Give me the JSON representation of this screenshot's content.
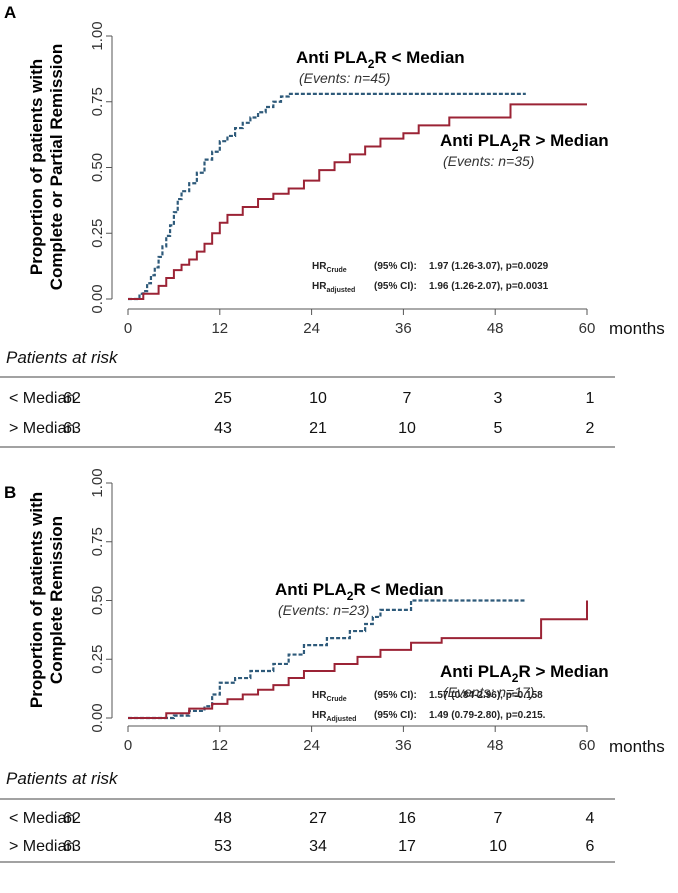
{
  "chart_data": [
    {
      "panel": "A",
      "type": "line",
      "ylabel_lines": [
        "Proportion of patients with",
        "Complete or Partial Remission"
      ],
      "xlabel": "months",
      "x_ticks": [
        "0",
        "12",
        "24",
        "36",
        "48",
        "60"
      ],
      "y_ticks": [
        "0.00",
        "0.25",
        "0.50",
        "0.75",
        "1.00"
      ],
      "xlim": [
        0,
        60
      ],
      "ylim": [
        0,
        1
      ],
      "series": [
        {
          "name_prefix": "Anti PLA",
          "name_sub": "2",
          "name_suffix": "R < Median",
          "events": "(Events: n=45)",
          "style": "dashed",
          "color": "#2e5a7a",
          "points": [
            [
              0,
              0
            ],
            [
              1.5,
              0.02
            ],
            [
              2,
              0.03
            ],
            [
              2.5,
              0.06
            ],
            [
              3,
              0.09
            ],
            [
              3.5,
              0.12
            ],
            [
              4,
              0.16
            ],
            [
              4.5,
              0.2
            ],
            [
              5,
              0.24
            ],
            [
              5.5,
              0.28
            ],
            [
              6,
              0.33
            ],
            [
              6.5,
              0.38
            ],
            [
              7,
              0.41
            ],
            [
              8,
              0.44
            ],
            [
              9,
              0.48
            ],
            [
              10,
              0.53
            ],
            [
              11,
              0.56
            ],
            [
              12,
              0.6
            ],
            [
              13,
              0.62
            ],
            [
              14,
              0.65
            ],
            [
              15,
              0.67
            ],
            [
              16,
              0.69
            ],
            [
              17,
              0.71
            ],
            [
              18,
              0.73
            ],
            [
              19,
              0.75
            ],
            [
              20,
              0.77
            ],
            [
              21,
              0.78
            ],
            [
              52,
              0.78
            ]
          ]
        },
        {
          "name_prefix": "Anti PLA",
          "name_sub": "2",
          "name_suffix": "R > Median",
          "events": "(Events: n=35)",
          "style": "solid",
          "color": "#9b2335",
          "points": [
            [
              0,
              0
            ],
            [
              2,
              0.02
            ],
            [
              4,
              0.05
            ],
            [
              5,
              0.08
            ],
            [
              6,
              0.11
            ],
            [
              7,
              0.13
            ],
            [
              8,
              0.15
            ],
            [
              9,
              0.18
            ],
            [
              10,
              0.21
            ],
            [
              11,
              0.25
            ],
            [
              12,
              0.29
            ],
            [
              13,
              0.32
            ],
            [
              15,
              0.35
            ],
            [
              17,
              0.38
            ],
            [
              19,
              0.4
            ],
            [
              21,
              0.42
            ],
            [
              23,
              0.45
            ],
            [
              25,
              0.49
            ],
            [
              27,
              0.52
            ],
            [
              29,
              0.55
            ],
            [
              31,
              0.58
            ],
            [
              33,
              0.61
            ],
            [
              36,
              0.63
            ],
            [
              38,
              0.66
            ],
            [
              42,
              0.69
            ],
            [
              50,
              0.74
            ],
            [
              60,
              0.74
            ]
          ]
        }
      ],
      "hr_rows": [
        {
          "label": "HR",
          "sub": "Crude",
          "ci_label": "(95% CI):",
          "value": "1.97 (1.26-3.07), p=0.0029"
        },
        {
          "label": "HR",
          "sub": "adjusted",
          "ci_label": "(95% CI):",
          "value": "1.96 (1.26-2.07), p=0.0031"
        }
      ],
      "risk_table": {
        "title": "Patients at risk",
        "rows": [
          {
            "label": "< Median",
            "values": [
              "62",
              "25",
              "10",
              "7",
              "3",
              "1"
            ]
          },
          {
            "label": "> Median",
            "values": [
              "63",
              "43",
              "21",
              "10",
              "5",
              "2"
            ]
          }
        ]
      }
    },
    {
      "panel": "B",
      "type": "line",
      "ylabel_lines": [
        "Proportion of patients with",
        "Complete Remission"
      ],
      "xlabel": "months",
      "x_ticks": [
        "0",
        "12",
        "24",
        "36",
        "48",
        "60"
      ],
      "y_ticks": [
        "0.00",
        "0.25",
        "0.50",
        "0.75",
        "1.00"
      ],
      "xlim": [
        0,
        60
      ],
      "ylim": [
        0,
        1
      ],
      "series": [
        {
          "name_prefix": "Anti PLA",
          "name_sub": "2",
          "name_suffix": "R < Median",
          "events": "(Events: n=23)",
          "style": "dashed",
          "color": "#2e5a7a",
          "points": [
            [
              0,
              0
            ],
            [
              6,
              0.01
            ],
            [
              8,
              0.03
            ],
            [
              10,
              0.05
            ],
            [
              11,
              0.1
            ],
            [
              12,
              0.15
            ],
            [
              14,
              0.17
            ],
            [
              16,
              0.2
            ],
            [
              19,
              0.23
            ],
            [
              21,
              0.27
            ],
            [
              23,
              0.31
            ],
            [
              26,
              0.34
            ],
            [
              29,
              0.37
            ],
            [
              31,
              0.4
            ],
            [
              32,
              0.43
            ],
            [
              33,
              0.46
            ],
            [
              37,
              0.5
            ],
            [
              52,
              0.5
            ]
          ]
        },
        {
          "name_prefix": "Anti PLA",
          "name_sub": "2",
          "name_suffix": "R > Median",
          "events": "(Events: n=17)",
          "style": "solid",
          "color": "#9b2335",
          "points": [
            [
              0,
              0
            ],
            [
              5,
              0.02
            ],
            [
              8,
              0.04
            ],
            [
              11,
              0.06
            ],
            [
              13,
              0.08
            ],
            [
              15,
              0.1
            ],
            [
              17,
              0.12
            ],
            [
              19,
              0.14
            ],
            [
              21,
              0.17
            ],
            [
              23,
              0.2
            ],
            [
              27,
              0.23
            ],
            [
              30,
              0.26
            ],
            [
              33,
              0.29
            ],
            [
              37,
              0.32
            ],
            [
              41,
              0.34
            ],
            [
              54,
              0.42
            ],
            [
              60,
              0.5
            ]
          ]
        }
      ],
      "hr_rows": [
        {
          "label": "HR",
          "sub": "Crude",
          "ci_label": "(95% CI):",
          "value": "1.57 (0.84-2.96), p=0.158"
        },
        {
          "label": "HR",
          "sub": "Adjusted",
          "ci_label": "(95% CI):",
          "value": "1.49 (0.79-2.80), p=0.215."
        }
      ],
      "risk_table": {
        "title": "Patients at risk",
        "rows": [
          {
            "label": "< Median",
            "values": [
              "62",
              "48",
              "27",
              "16",
              "7",
              "4"
            ]
          },
          {
            "label": "> Median",
            "values": [
              "63",
              "53",
              "34",
              "17",
              "10",
              "6"
            ]
          }
        ]
      }
    }
  ]
}
